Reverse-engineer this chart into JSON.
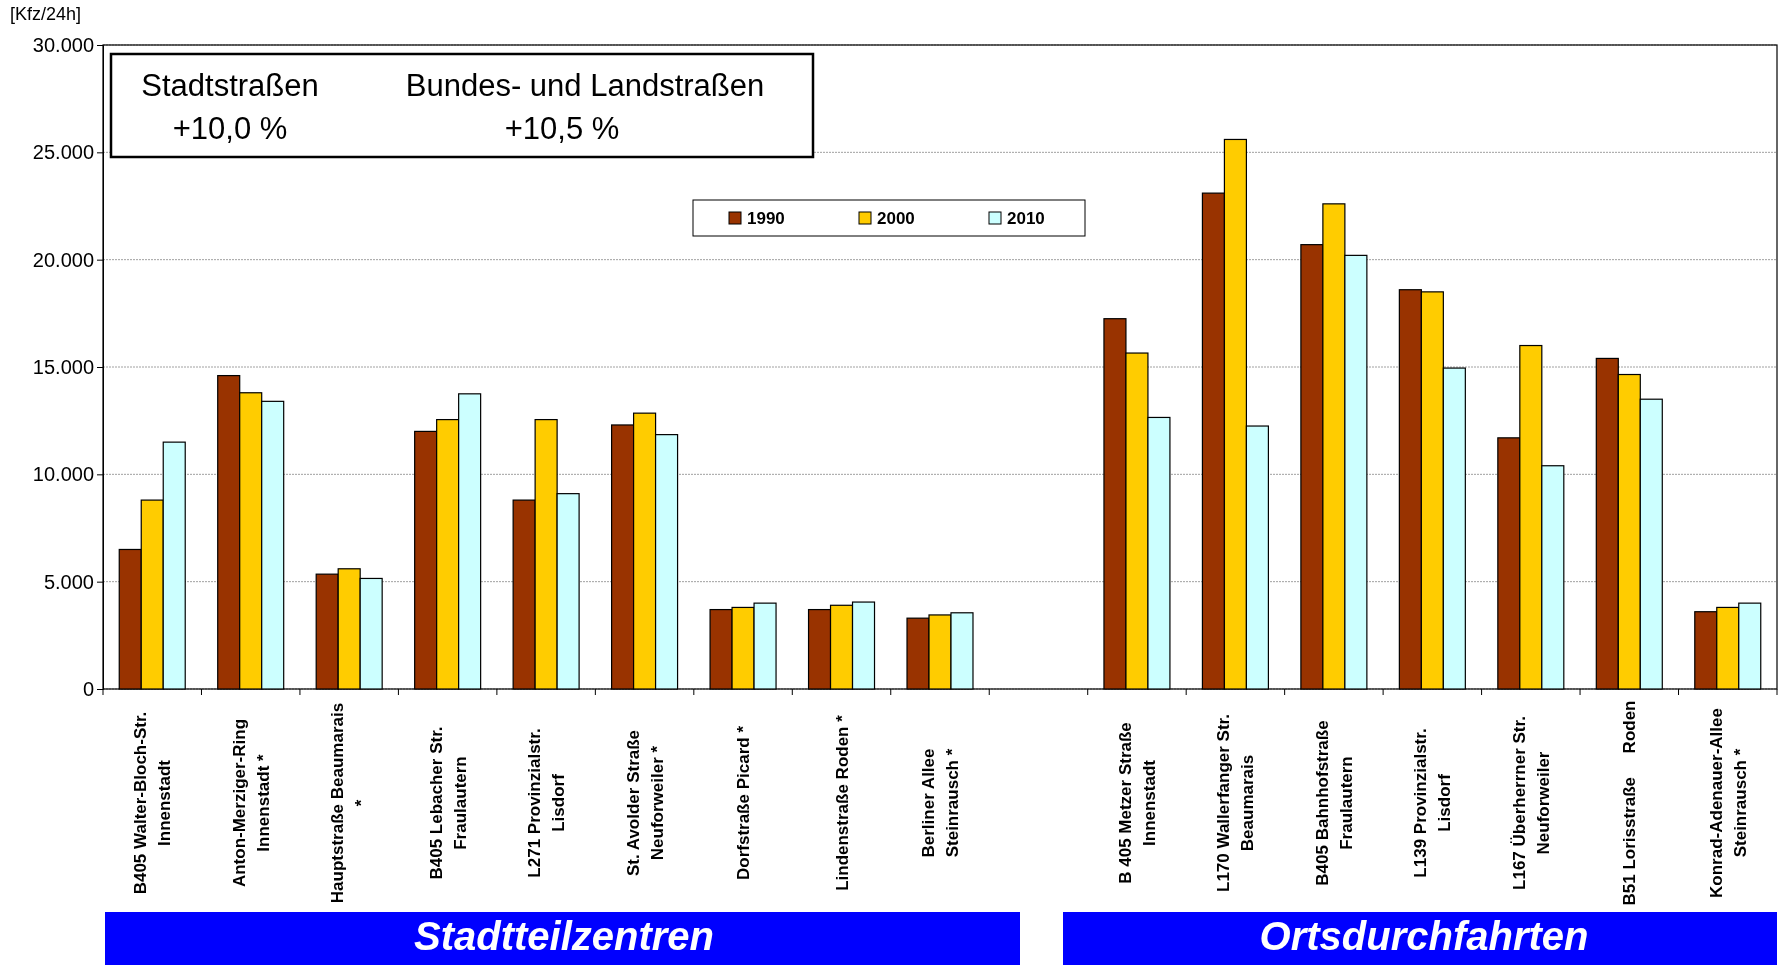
{
  "chart_data": {
    "type": "bar",
    "ylabel": "[Kfz/24h]",
    "categories": [
      "B405 Walter-Bloch-Str.\nInnenstadt",
      "Anton-Merziger-Ring\nInnenstadt *",
      "Hauptstraße Beaumarais\n*",
      "B405 Lebacher Str.\nFraulautern",
      "L271 Provinzialstr.\nLisdorf",
      "St. Avolder Straße\nNeuforweiler *",
      "Dorfstraße Picard *",
      "Lindenstraße Roden *",
      "Berliner Allee\nSteinrausch *",
      null,
      "B 405 Metzer Straße\nInnenstadt",
      "L170 Wallerfanger Str.\nBeaumarais",
      "B405 Bahnhofstraße\nFraulautern",
      "L139 Provinzialstr.\nLisdorf",
      "L167 Überherrner Str.\nNeuforweiler",
      "B51 Lorisstraße     Roden",
      "Konrad-Adenauer-Allee\nSteinrausch *"
    ],
    "series": [
      {
        "name": "1990",
        "color": "#993300",
        "values": [
          6500,
          14600,
          5350,
          12000,
          8800,
          12300,
          3700,
          3700,
          3300,
          null,
          17250,
          23100,
          20700,
          18600,
          11700,
          15400,
          3600
        ]
      },
      {
        "name": "2000",
        "color": "#ffcc00",
        "values": [
          8800,
          13800,
          5600,
          12550,
          12550,
          12850,
          3800,
          3900,
          3450,
          null,
          15650,
          25600,
          22600,
          18500,
          16000,
          14650,
          3800
        ]
      },
      {
        "name": "2010",
        "color": "#ccffff",
        "values": [
          11500,
          13400,
          5150,
          13750,
          9100,
          11850,
          4000,
          4050,
          3550,
          null,
          12650,
          12250,
          20200,
          14950,
          10400,
          13500,
          4000
        ]
      }
    ],
    "ylim": [
      0,
      30000
    ],
    "yticks": [
      0,
      {
        "value": 5000,
        "label": "5.000"
      },
      {
        "value": 10000,
        "label": "10.000"
      },
      {
        "value": 15000,
        "label": "15.000"
      },
      {
        "value": 20000,
        "label": "20.000"
      },
      {
        "value": 25000,
        "label": "25.000"
      },
      {
        "value": 30000,
        "label": "30.000"
      }
    ],
    "grid": "y",
    "legend": "top",
    "annotations": [
      "Stadtstraßen",
      "+10,0 %",
      "Bundes- und Landstraßen",
      "+10,5 %",
      "Stadtteilzentren",
      "Ortsdurchfahrten"
    ]
  }
}
